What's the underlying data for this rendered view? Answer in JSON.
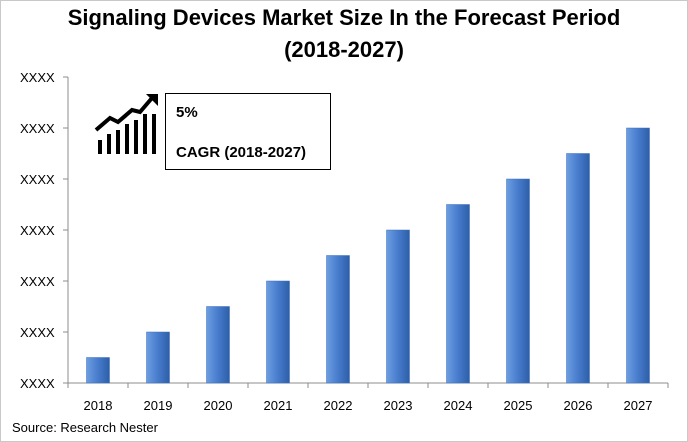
{
  "title_line1": "Signaling Devices Market Size In the Forecast Period",
  "title_line2": "(2018-2027)",
  "source": "Source: Research Nester",
  "cagr": {
    "value": "5%",
    "label": "CAGR (2018-2027)",
    "icon": "growth-chart-icon"
  },
  "colors": {
    "bar_light": "#6d9ee0",
    "bar_main": "#4a7fcf",
    "bar_dark": "#2d5ea8",
    "axis": "#8c8c8c"
  },
  "chart_data": {
    "type": "bar",
    "categories": [
      "2018",
      "2019",
      "2020",
      "2021",
      "2022",
      "2023",
      "2024",
      "2025",
      "2026",
      "2027"
    ],
    "values": [
      1,
      2,
      3,
      4,
      5,
      6,
      7,
      8,
      9,
      10
    ],
    "y_tick_labels": [
      "XXXX",
      "XXXX",
      "XXXX",
      "XXXX",
      "XXXX",
      "XXXX",
      "XXXX"
    ],
    "ylim": [
      0,
      12
    ],
    "grid": false
  }
}
